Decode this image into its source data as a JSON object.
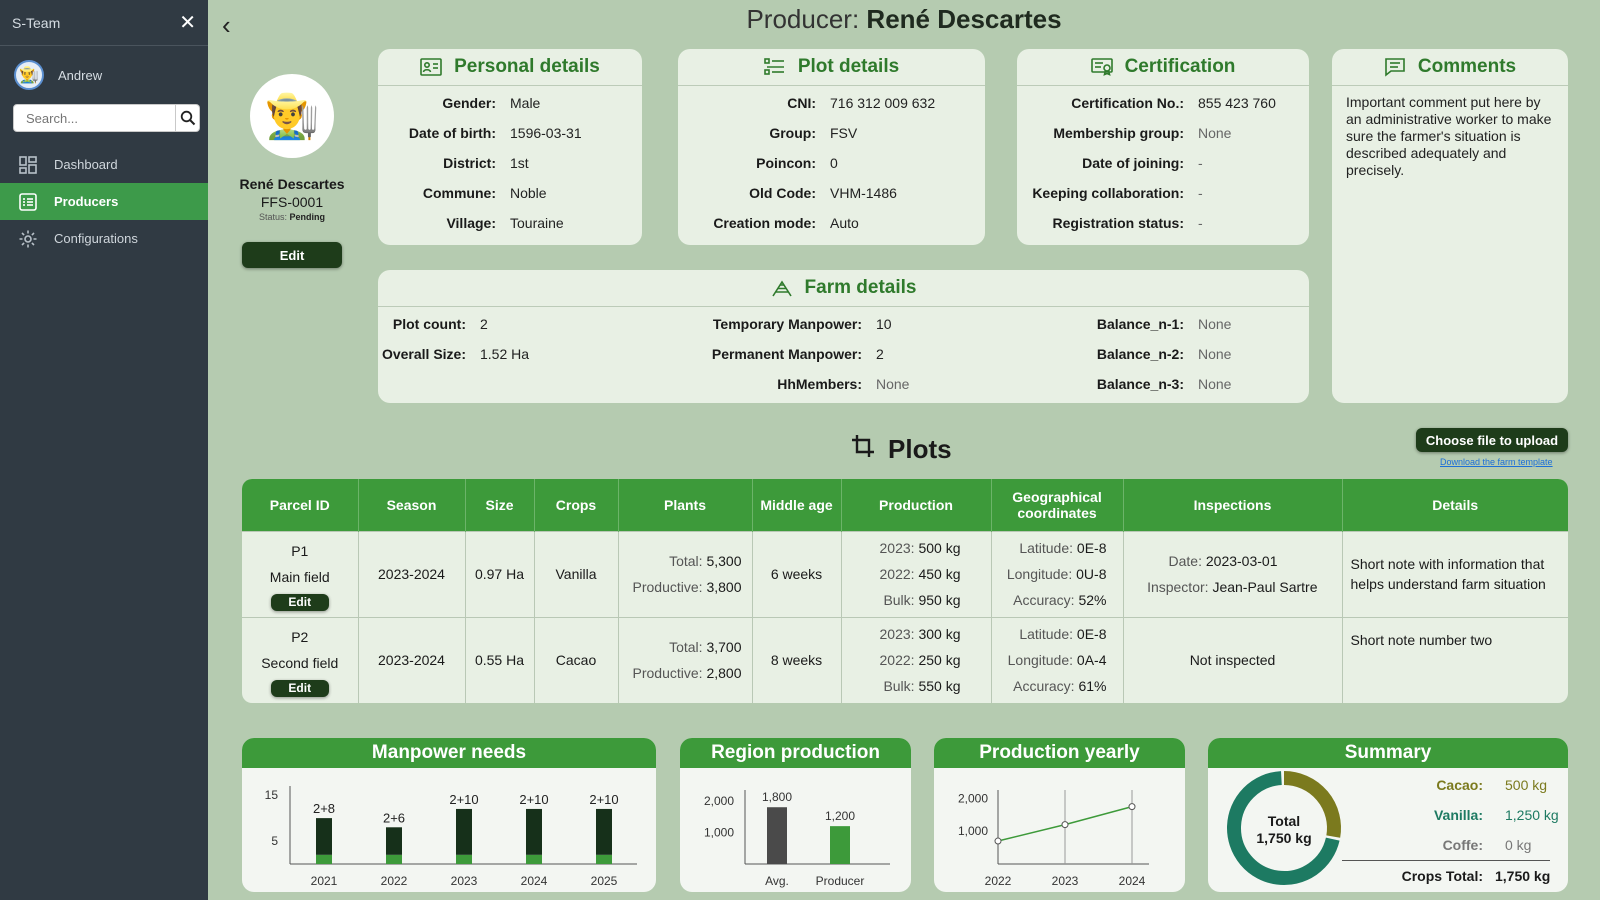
{
  "app": {
    "team": "S-Team",
    "user": "Andrew",
    "search_placeholder": "Search..."
  },
  "nav": [
    {
      "label": "Dashboard",
      "icon": "dashboard-icon"
    },
    {
      "label": "Producers",
      "icon": "list-icon"
    },
    {
      "label": "Configurations",
      "icon": "gear-icon"
    }
  ],
  "page": {
    "title_prefix": "Producer:",
    "title_name": "René Descartes"
  },
  "profile": {
    "name": "René Descartes",
    "code": "FFS-0001",
    "status_label": "Status:",
    "status": "Pending",
    "edit_label": "Edit"
  },
  "personal": {
    "title": "Personal details",
    "rows": [
      {
        "k": "Gender:",
        "v": "Male"
      },
      {
        "k": "Date of birth:",
        "v": "1596-03-31"
      },
      {
        "k": "District:",
        "v": "1st"
      },
      {
        "k": "Commune:",
        "v": "Noble"
      },
      {
        "k": "Village:",
        "v": "Touraine"
      }
    ]
  },
  "plot": {
    "title": "Plot details",
    "rows": [
      {
        "k": "CNI:",
        "v": "716 312 009 632"
      },
      {
        "k": "Group:",
        "v": "FSV"
      },
      {
        "k": "Poincon:",
        "v": "0"
      },
      {
        "k": "Old Code:",
        "v": "VHM-1486"
      },
      {
        "k": "Creation mode:",
        "v": "Auto"
      }
    ]
  },
  "cert": {
    "title": "Certification",
    "rows": [
      {
        "k": "Certification No.:",
        "v": "855 423 760"
      },
      {
        "k": "Membership group:",
        "v": "None"
      },
      {
        "k": "Date of joining:",
        "v": "-"
      },
      {
        "k": "Keeping collaboration:",
        "v": "-"
      },
      {
        "k": "Registration status:",
        "v": "-"
      }
    ]
  },
  "comments": {
    "title": "Comments",
    "text": "Important comment put here by an administrative worker to make sure the farmer's situation is described adequately and precisely."
  },
  "farm": {
    "title": "Farm details",
    "col1": [
      {
        "k": "Plot count:",
        "v": "2"
      },
      {
        "k": "Overall Size:",
        "v": "1.52 Ha"
      }
    ],
    "col2": [
      {
        "k": "Temporary Manpower:",
        "v": "10"
      },
      {
        "k": "Permanent Manpower:",
        "v": "2"
      },
      {
        "k": "HhMembers:",
        "v": "None"
      }
    ],
    "col3": [
      {
        "k": "Balance_n-1:",
        "v": "None"
      },
      {
        "k": "Balance_n-2:",
        "v": "None"
      },
      {
        "k": "Balance_n-3:",
        "v": "None"
      }
    ]
  },
  "plots": {
    "title": "Plots",
    "upload_label": "Choose file to upload",
    "template_link": "Download the farm template",
    "headers": [
      "Parcel ID",
      "Season",
      "Size",
      "Crops",
      "Plants",
      "Middle age",
      "Production",
      "Geographical coordinates",
      "Inspections",
      "Details"
    ],
    "rows": [
      {
        "id": "P1",
        "field": "Main field",
        "edit": "Edit",
        "season": "2023-2024",
        "size": "0.97 Ha",
        "crops": "Vanilla",
        "total_label": "Total:",
        "total": "5,300",
        "prod_label": "Productive:",
        "productive": "3,800",
        "age": "6 weeks",
        "p2023_label": "2023:",
        "p2023": "500 kg",
        "p2022_label": "2022:",
        "p2022": "450 kg",
        "bulk_label": "Bulk:",
        "bulk": "950 kg",
        "lat_label": "Latitude:",
        "lat": "0E-8",
        "lon_label": "Longitude:",
        "lon": "0U-8",
        "acc_label": "Accuracy:",
        "acc": "52%",
        "date_label": "Date:",
        "date": "2023-03-01",
        "inspector_label": "Inspector:",
        "inspector": "Jean-Paul Sartre",
        "details": "Short note with information that helps understand farm situation"
      },
      {
        "id": "P2",
        "field": "Second field",
        "edit": "Edit",
        "season": "2023-2024",
        "size": "0.55 Ha",
        "crops": "Cacao",
        "total_label": "Total:",
        "total": "3,700",
        "prod_label": "Productive:",
        "productive": "2,800",
        "age": "8 weeks",
        "p2023_label": "2023:",
        "p2023": "300 kg",
        "p2022_label": "2022:",
        "p2022": "250 kg",
        "bulk_label": "Bulk:",
        "bulk": "550 kg",
        "lat_label": "Latitude:",
        "lat": "0E-8",
        "lon_label": "Longitude:",
        "lon": "0A-4",
        "acc_label": "Accuracy:",
        "acc": "61%",
        "inspection": "Not inspected",
        "details": "Short note number two"
      }
    ]
  },
  "charts": {
    "manpower_title": "Manpower needs",
    "region_title": "Region production",
    "yearly_title": "Production yearly",
    "summary_title": "Summary"
  },
  "chart_data": [
    {
      "type": "bar",
      "title": "Manpower needs",
      "categories": [
        "2021",
        "2022",
        "2023",
        "2024",
        "2025"
      ],
      "series": [
        {
          "values": [
            2,
            2,
            2,
            2,
            2
          ]
        },
        {
          "values": [
            8,
            6,
            10,
            10,
            10
          ]
        }
      ],
      "labels": [
        "2+8",
        "2+6",
        "2+10",
        "2+10",
        "2+10"
      ],
      "y_ticks": [
        "15",
        "5"
      ],
      "ylim": [
        0,
        17
      ],
      "colors": [
        "#3d9a3a",
        "#16301a"
      ]
    },
    {
      "type": "bar",
      "title": "Region production",
      "categories": [
        "Avg.",
        "Producer"
      ],
      "values": [
        1800,
        1200
      ],
      "labels": [
        "1,800",
        "1,200"
      ],
      "y_ticks": [
        "2,000",
        "1,000"
      ],
      "ylim": [
        0,
        2600
      ],
      "colors": [
        "#4a4a4a",
        "#3d9a3a"
      ]
    },
    {
      "type": "line",
      "title": "Production yearly",
      "x": [
        "2022",
        "2023",
        "2024"
      ],
      "values": [
        700,
        1200,
        1750
      ],
      "y_ticks": [
        "2,000",
        "1,000"
      ],
      "ylim": [
        0,
        2500
      ],
      "color": "#3d9a3a"
    },
    {
      "type": "pie",
      "title": "Summary",
      "center_label": "Total",
      "center_value": "1,750 kg",
      "rows": [
        {
          "k": "Cacao:",
          "v": "500 kg",
          "color": "#7b7a1e"
        },
        {
          "k": "Vanilla:",
          "v": "1,250 kg",
          "color": "#1d7a62"
        },
        {
          "k": "Coffe:",
          "v": "0 kg",
          "color": "#777777"
        }
      ],
      "values": [
        500,
        1250,
        0
      ],
      "total_label": "Crops Total:",
      "total_value": "1,750 kg"
    }
  ]
}
